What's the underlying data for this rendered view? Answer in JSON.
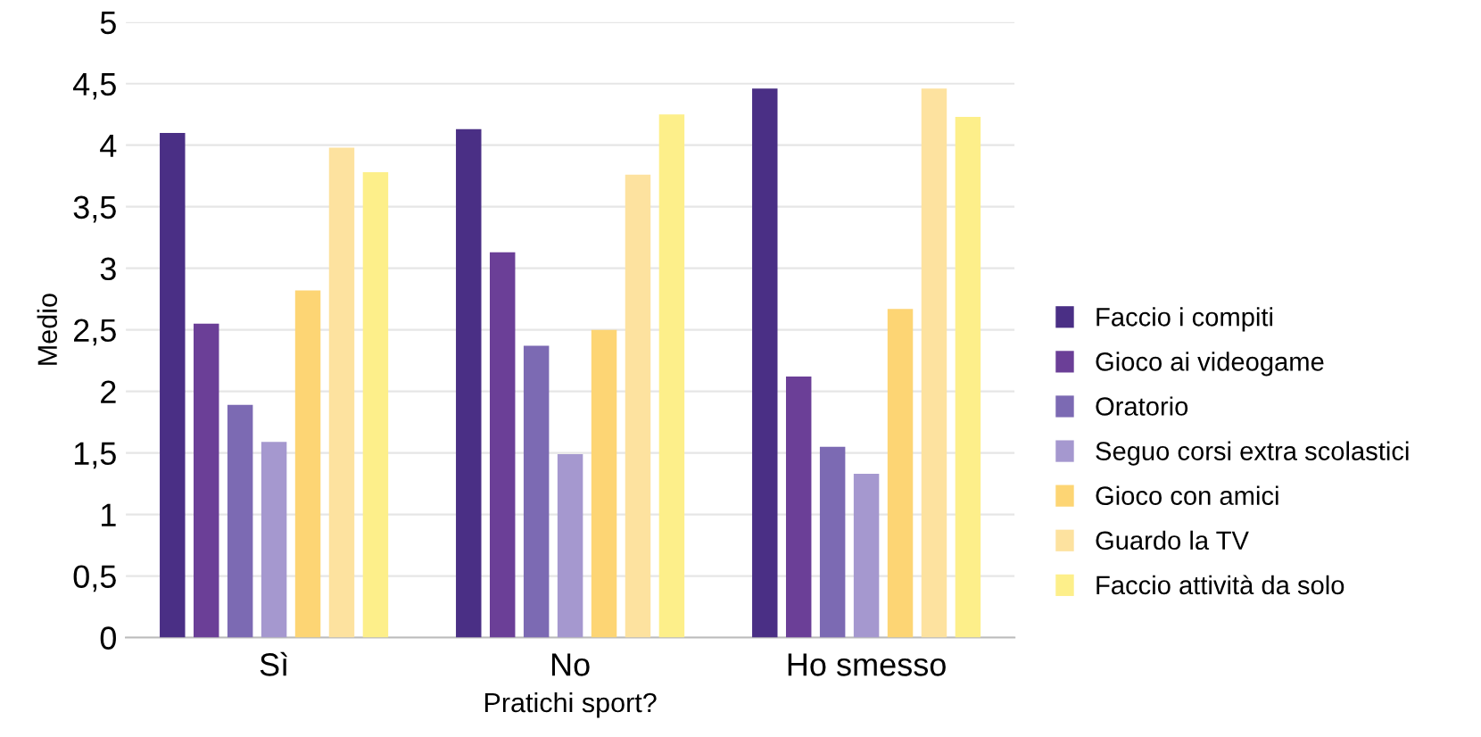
{
  "chart_data": {
    "type": "bar",
    "xlabel": "Pratichi sport?",
    "ylabel": "Medio",
    "categories": [
      "Sì",
      "No",
      "Ho smesso"
    ],
    "series": [
      {
        "name": "Faccio i compiti",
        "color": "#4a2f85",
        "values": [
          4.1,
          4.13,
          4.46
        ]
      },
      {
        "name": "Gioco ai videogame",
        "color": "#6b3f97",
        "values": [
          2.55,
          3.13,
          2.12
        ]
      },
      {
        "name": "Oratorio",
        "color": "#7c6ab3",
        "values": [
          1.89,
          2.37,
          1.55
        ]
      },
      {
        "name": "Seguo corsi extra scolastici",
        "color": "#a598cf",
        "values": [
          1.59,
          1.49,
          1.33
        ]
      },
      {
        "name": "Gioco con amici",
        "color": "#fdd574",
        "values": [
          2.82,
          2.5,
          2.67
        ]
      },
      {
        "name": "Guardo la TV",
        "color": "#fde29f",
        "values": [
          3.98,
          3.76,
          4.46
        ]
      },
      {
        "name": "Faccio attività da solo",
        "color": "#fdef8a",
        "values": [
          3.78,
          4.25,
          4.23
        ]
      }
    ],
    "ylim": [
      0,
      5
    ],
    "yticks": [
      0,
      {
        "value": 0.5,
        "label": "0,5"
      },
      1,
      {
        "value": 1.5,
        "label": "1,5"
      },
      2,
      {
        "value": 2.5,
        "label": "2,5"
      },
      3,
      {
        "value": 3.5,
        "label": "3,5"
      },
      4,
      {
        "value": 4.5,
        "label": "4,5"
      },
      5
    ],
    "grid": "y",
    "legend": "right"
  }
}
